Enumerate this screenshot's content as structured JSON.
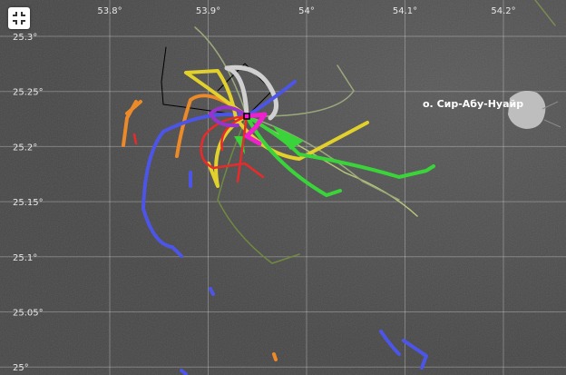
{
  "map": {
    "lon_labels": [
      "53.8°",
      "53.9°",
      "54°",
      "54.1°",
      "54.2°"
    ],
    "lat_labels": [
      "25.3°",
      "25.25°",
      "25.2°",
      "25.15°",
      "25.1°",
      "25.05°",
      "25°"
    ],
    "island_label": "о. Сир-Абу-Нуайр"
  }
}
